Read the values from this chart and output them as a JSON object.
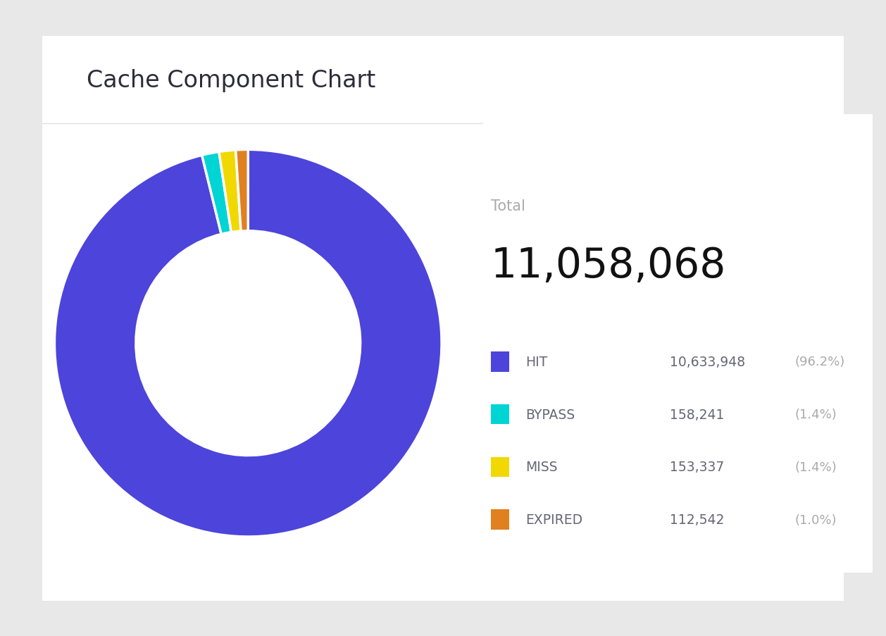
{
  "title": "Cache Component Chart",
  "title_color": "#2d2d3a",
  "title_fontsize": 24,
  "total_label": "Total",
  "total_value": "11,058,068",
  "total_label_color": "#aaaaaa",
  "total_value_color": "#111111",
  "background_outer": "#e8e8e8",
  "background_card": "#ffffff",
  "categories": [
    "HIT",
    "BYPASS",
    "MISS",
    "EXPIRED"
  ],
  "values": [
    10633948,
    158241,
    153337,
    112542
  ],
  "percentages": [
    "96.2%",
    "1.4%",
    "1.4%",
    "1.0%"
  ],
  "display_values": [
    "10,633,948",
    "158,241",
    "153,337",
    "112,542"
  ],
  "colors": [
    "#4d44db",
    "#00d4d4",
    "#f0d800",
    "#e08020"
  ],
  "legend_label_color": "#666677",
  "legend_value_color": "#666677",
  "legend_pct_color": "#aaaaaa"
}
